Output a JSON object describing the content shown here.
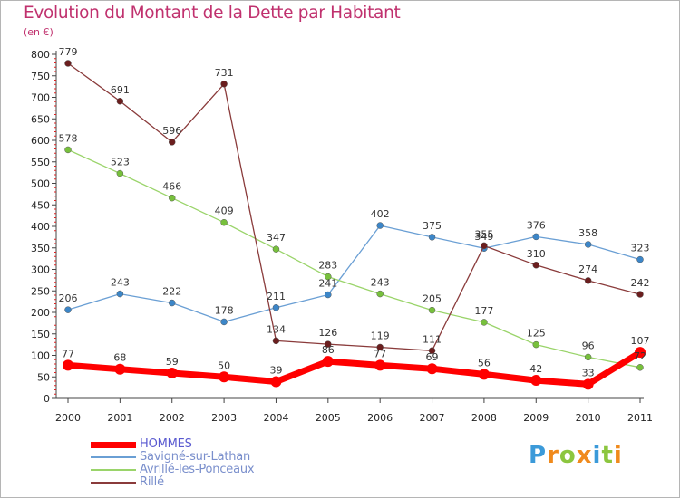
{
  "title": "Evolution du Montant de la Dette par Habitant",
  "unit": "(en €)",
  "logo": {
    "letters": [
      "P",
      "r",
      "o",
      "x",
      "i",
      "t",
      "i"
    ],
    "colors": [
      "#3b9ad9",
      "#f08a1c",
      "#8cc63f",
      "#f08a1c",
      "#3b9ad9",
      "#8cc63f",
      "#f08a1c"
    ]
  },
  "chart_data": {
    "type": "line",
    "x": [
      "2000",
      "2001",
      "2002",
      "2003",
      "2004",
      "2005",
      "2006",
      "2007",
      "2008",
      "2009",
      "2010",
      "2011"
    ],
    "ylim": [
      0,
      800
    ],
    "yticks": [
      "0",
      "50",
      "100",
      "150",
      "200",
      "250",
      "300",
      "350",
      "400",
      "450",
      "500",
      "550",
      "600",
      "650",
      "700",
      "750",
      "800"
    ],
    "grid": false,
    "legend_position": "bottom-left",
    "series": [
      {
        "name": "HOMMES",
        "color": "#ff0000",
        "marker": "#ff0000",
        "width": 7,
        "marker_r": 6,
        "values": [
          77,
          68,
          59,
          50,
          39,
          86,
          77,
          69,
          56,
          42,
          33,
          107
        ],
        "labels": [
          "77",
          "68",
          "59",
          "50",
          "39",
          "86",
          "77",
          "69",
          "56",
          "42",
          "33",
          "107"
        ]
      },
      {
        "name": "Savigné-sur-Lathan",
        "color": "#6a9fd4",
        "marker": "#3c86c8",
        "width": 1.3,
        "marker_r": 3.5,
        "values": [
          206,
          243,
          222,
          178,
          211,
          241,
          402,
          375,
          349,
          376,
          358,
          323
        ],
        "labels": [
          "206",
          "243",
          "222",
          "178",
          "211",
          "241",
          "402",
          "375",
          "349",
          "376",
          "358",
          "323"
        ]
      },
      {
        "name": "Avrillé-les-Ponceaux",
        "color": "#9ad46a",
        "marker": "#77c03c",
        "width": 1.3,
        "marker_r": 3.5,
        "values": [
          578,
          523,
          466,
          409,
          347,
          283,
          243,
          205,
          177,
          125,
          96,
          72
        ],
        "labels": [
          "578",
          "523",
          "466",
          "409",
          "347",
          "283",
          "243",
          "205",
          "177",
          "125",
          "96",
          "72"
        ]
      },
      {
        "name": "Rillé",
        "color": "#8a3b3b",
        "marker": "#6b1e1e",
        "width": 1.3,
        "marker_r": 3.5,
        "values": [
          779,
          691,
          596,
          731,
          134,
          126,
          119,
          111,
          355,
          310,
          274,
          242
        ],
        "labels": [
          "779",
          "691",
          "596",
          "731",
          "134",
          "126",
          "119",
          "111",
          "355",
          "310",
          "274",
          "242"
        ]
      }
    ]
  }
}
